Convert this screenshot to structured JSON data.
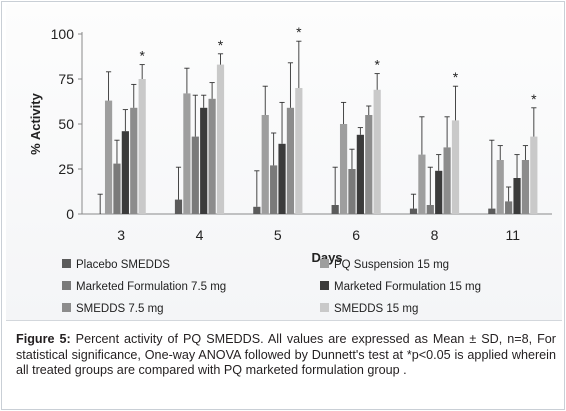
{
  "chart_data": {
    "type": "bar",
    "title": "",
    "ylabel": "% Activity",
    "xlabel": "Days",
    "ylim": [
      0,
      100
    ],
    "yticks": [
      0,
      25,
      50,
      75,
      100
    ],
    "categories": [
      "3",
      "4",
      "5",
      "6",
      "8",
      "11"
    ],
    "legend_position": "bottom",
    "significance_marker": "*",
    "significant": [
      true,
      true,
      true,
      true,
      true,
      true
    ],
    "series": [
      {
        "name": "Placebo SMEDDS",
        "color": "#5b5b5b",
        "values": [
          0,
          8,
          4,
          5,
          3,
          3
        ],
        "sd": [
          11,
          18,
          20,
          21,
          8,
          38
        ]
      },
      {
        "name": "PQ Suspension 15 mg",
        "color": "#9e9e9e",
        "values": [
          63,
          67,
          55,
          50,
          33,
          30
        ],
        "sd": [
          16,
          14,
          16,
          12,
          21,
          8
        ]
      },
      {
        "name": "Marketed Formulation 7.5 mg",
        "color": "#7a7a7a",
        "values": [
          28,
          43,
          27,
          25,
          5,
          7
        ],
        "sd": [
          13,
          23,
          18,
          11,
          21,
          8
        ]
      },
      {
        "name": "Marketed Formulation 15 mg",
        "color": "#3b3b3b",
        "values": [
          46,
          59,
          39,
          44,
          24,
          20
        ],
        "sd": [
          12,
          7,
          23,
          4,
          9,
          13
        ]
      },
      {
        "name": "SMEDDS 7.5 mg",
        "color": "#8c8c8c",
        "values": [
          59,
          64,
          59,
          55,
          37,
          30
        ],
        "sd": [
          13,
          9,
          25,
          5,
          17,
          8
        ]
      },
      {
        "name": "SMEDDS 15 mg",
        "color": "#c9c9c9",
        "values": [
          75,
          83,
          70,
          69,
          52,
          43
        ],
        "sd": [
          8,
          6,
          26,
          9,
          19,
          16
        ]
      }
    ]
  },
  "caption": {
    "label": "Figure 5:",
    "text": " Percent activity of PQ SMEDDS. All values are expressed as Mean ± SD, n=8, For statistical significance, One-way ANOVA followed by Dunnett's test  at *p<0.05 is applied wherein all treated groups are compared with PQ marketed formulation group ."
  }
}
